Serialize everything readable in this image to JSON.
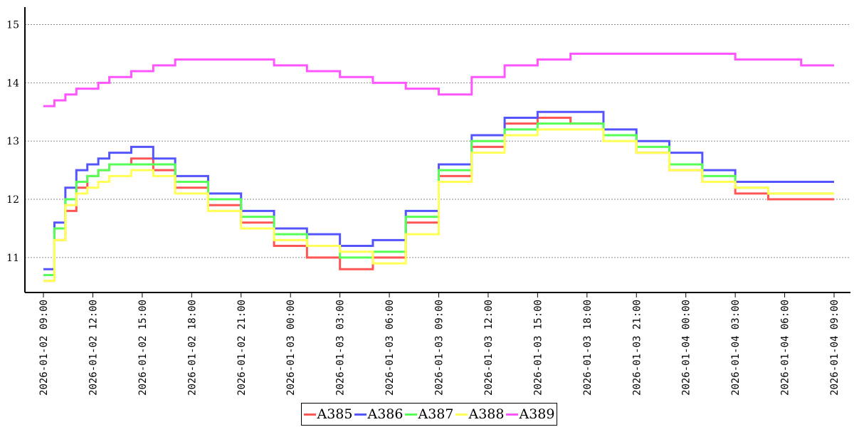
{
  "chart_data": {
    "type": "line",
    "title": "",
    "xlabel": "",
    "ylabel": "",
    "ylim": [
      10.4,
      15.3
    ],
    "yticks": [
      11,
      12,
      13,
      14,
      15
    ],
    "grid": "horizontal-dotted",
    "legend_position": "bottom-center",
    "xtick_labels": [
      "2026-01-02 09:00",
      "2026-01-02 12:00",
      "2026-01-02 15:00",
      "2026-01-02 18:00",
      "2026-01-02 21:00",
      "2026-01-03 00:00",
      "2026-01-03 03:00",
      "2026-01-03 06:00",
      "2026-01-03 09:00",
      "2026-01-03 12:00",
      "2026-01-03 15:00",
      "2026-01-03 18:00",
      "2026-01-03 21:00",
      "2026-01-04 00:00",
      "2026-01-04 03:00",
      "2026-01-04 06:00",
      "2026-01-04 09:00"
    ],
    "x_hours": [
      0,
      1,
      2,
      3,
      4,
      5,
      6,
      8,
      10,
      12,
      15,
      18,
      21,
      24,
      27,
      30,
      33,
      36,
      39,
      42,
      45,
      48
    ],
    "series": [
      {
        "name": "A385",
        "color": "#ff5555",
        "values": [
          10.6,
          11.3,
          11.8,
          12.2,
          12.4,
          12.5,
          12.6,
          12.7,
          12.5,
          12.2,
          11.9,
          11.6,
          11.2,
          11.0,
          10.8,
          11.0,
          11.6,
          12.4,
          12.9,
          13.3,
          13.4,
          13.3
        ]
      },
      {
        "name": "A386",
        "color": "#5555ff",
        "values": [
          10.8,
          11.6,
          12.2,
          12.5,
          12.6,
          12.7,
          12.8,
          12.9,
          12.7,
          12.4,
          12.1,
          11.8,
          11.5,
          11.4,
          11.2,
          11.3,
          11.8,
          12.6,
          13.1,
          13.4,
          13.5,
          13.5
        ]
      },
      {
        "name": "A387",
        "color": "#55ff55",
        "values": [
          10.7,
          11.5,
          12.0,
          12.3,
          12.4,
          12.5,
          12.6,
          12.6,
          12.6,
          12.3,
          12.0,
          11.7,
          11.4,
          11.2,
          11.0,
          11.1,
          11.7,
          12.5,
          13.0,
          13.2,
          13.3,
          13.3
        ]
      },
      {
        "name": "A388",
        "color": "#ffff55",
        "values": [
          10.6,
          11.3,
          11.9,
          12.1,
          12.2,
          12.3,
          12.4,
          12.5,
          12.4,
          12.1,
          11.8,
          11.5,
          11.3,
          11.2,
          11.1,
          10.9,
          11.4,
          12.3,
          12.8,
          13.1,
          13.2,
          13.2
        ]
      },
      {
        "name": "A389",
        "color": "#ff55ff",
        "values": [
          13.6,
          13.7,
          13.8,
          13.9,
          13.9,
          14.0,
          14.1,
          14.2,
          14.3,
          14.4,
          14.4,
          14.4,
          14.3,
          14.2,
          14.1,
          14.0,
          13.9,
          13.8,
          14.1,
          14.3,
          14.4,
          14.5
        ]
      }
    ],
    "series_tail": {
      "x_hours": [
        51,
        54,
        57,
        60,
        63,
        66,
        69,
        72
      ],
      "A385": [
        13.1,
        12.8,
        12.5,
        12.3,
        12.1,
        12.0,
        12.0,
        12.0
      ],
      "A386": [
        13.2,
        13.0,
        12.8,
        12.5,
        12.3,
        12.3,
        12.3,
        12.3
      ],
      "A387": [
        13.1,
        12.9,
        12.6,
        12.4,
        12.2,
        12.1,
        12.1,
        12.1
      ],
      "A388": [
        13.0,
        12.8,
        12.5,
        12.3,
        12.2,
        12.1,
        12.1,
        12.1
      ],
      "A389": [
        14.5,
        14.5,
        14.5,
        14.5,
        14.4,
        14.4,
        14.3,
        14.3
      ]
    },
    "x_max_hours": 72
  }
}
